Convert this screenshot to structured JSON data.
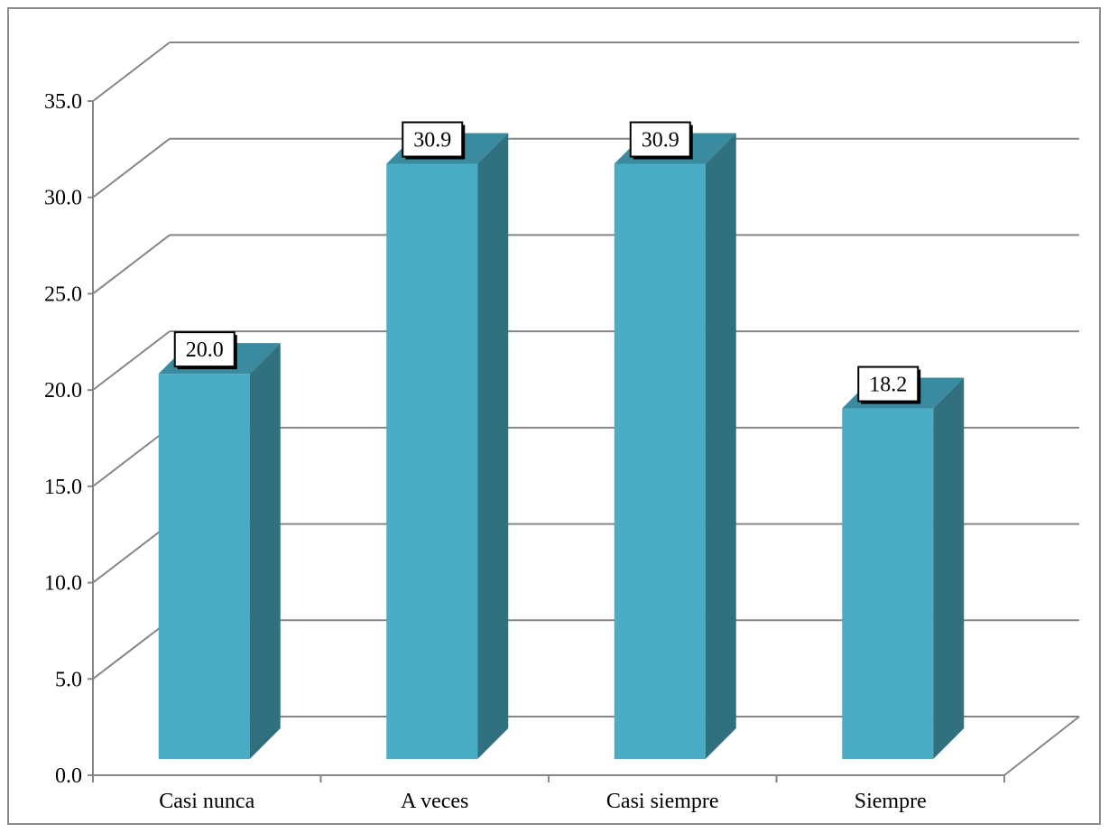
{
  "chart_data": {
    "type": "bar",
    "categories": [
      "Casi nunca",
      "A veces",
      "Casi siempre",
      "Siempre"
    ],
    "values": [
      20.0,
      30.9,
      30.9,
      18.2
    ],
    "data_labels": [
      "20.0",
      "30.9",
      "30.9",
      "18.2"
    ],
    "yticks": [
      "0.0",
      "5.0",
      "10.0",
      "15.0",
      "20.0",
      "25.0",
      "30.0",
      "35.0"
    ],
    "ylim": [
      0,
      35
    ],
    "title": "",
    "xlabel": "",
    "ylabel": "",
    "grid": true,
    "legend": "none",
    "style": "3d-column",
    "colors": {
      "bar_front": "#4bacc6",
      "bar_side": "#31707f",
      "bar_top": "#3a8ba0",
      "grid": "#868686",
      "frame": "#8c8c8c"
    }
  }
}
